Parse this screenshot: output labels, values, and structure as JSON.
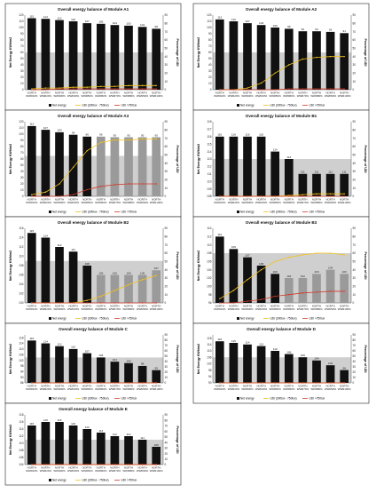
{
  "colors": {
    "bar": "#111111",
    "bar_alt": "#9a9a9a",
    "band": "#cfcfcf",
    "udi_mid": "#f2c21b",
    "udi_high": "#d23a2a"
  },
  "chart_data": [
    {
      "type": "bar",
      "title": "Overall energy balance of Module A1",
      "ylabel": "Net Energy KWh/m2",
      "y2label": "Percentage of UDI",
      "categories": [
        "NORTH WWR10%",
        "NORTH WWR20%",
        "NORTH WWR30%",
        "NORTH WWR40%",
        "NORTH WWR50%",
        "NORTH WWR60%",
        "NORTH WWR70%",
        "NORTH WWR80%",
        "NORTH WWR90%",
        "NORTH WWR100%"
      ],
      "values": [
        115,
        114,
        112,
        110,
        107,
        106,
        104,
        103,
        101,
        98
      ],
      "ylim": [
        0,
        120
      ],
      "yticks": [
        0,
        10,
        20,
        30,
        40,
        50,
        60,
        70,
        80,
        90,
        100,
        110,
        120
      ],
      "y2lim": [
        0,
        90
      ],
      "y2ticks": [
        0,
        10,
        20,
        30,
        40,
        50,
        60,
        70,
        80,
        90
      ],
      "band": [
        0,
        60
      ],
      "series": [
        {
          "name": "UDI (300lux - 750lux)",
          "values": [
            1,
            2,
            2,
            3,
            3,
            4,
            4,
            5,
            5,
            5
          ]
        },
        {
          "name": "UDI >750lux",
          "values": [
            0,
            0,
            1,
            1,
            1,
            1,
            1,
            1,
            1,
            1
          ]
        }
      ],
      "legend": [
        "Net energy",
        "UDI (300lux - 750lux)",
        "UDI >750lux"
      ],
      "legend_position": "bottom",
      "grid": false
    },
    {
      "type": "bar",
      "title": "Overall energy balance of Module A2",
      "ylabel": "Net Energy KWh/m2",
      "y2label": "Percentage of UDI",
      "categories": [
        "NORTH WWR10%",
        "NORTH WWR20%",
        "NORTH WWR30%",
        "NORTH WWR40%",
        "NORTH WWR50%",
        "NORTH WWR60%",
        "NORTH WWR70%",
        "NORTH WWR80%",
        "NORTH WWR90%",
        "NORTH WWR100%"
      ],
      "values": [
        113,
        110,
        107,
        104,
        100,
        98,
        94,
        94,
        93,
        91
      ],
      "ylim": [
        0,
        120
      ],
      "yticks": [
        0,
        10,
        20,
        30,
        40,
        50,
        60,
        70,
        80,
        90,
        100,
        110,
        120
      ],
      "y2lim": [
        0,
        90
      ],
      "y2ticks": [
        0,
        10,
        20,
        30,
        40,
        50,
        60,
        70,
        80,
        90
      ],
      "band": [
        0,
        60
      ],
      "series": [
        {
          "name": "UDI (300lux - 750lux)",
          "values": [
            0,
            0,
            2,
            8,
            20,
            30,
            37,
            39,
            40,
            40
          ]
        },
        {
          "name": "UDI >750lux",
          "values": [
            0,
            0,
            0,
            0,
            0,
            1,
            1,
            1,
            1,
            1
          ]
        }
      ],
      "legend": [
        "Net energy",
        "UDI (300lux - 750lux)",
        "UDI >750lux"
      ],
      "legend_position": "bottom",
      "grid": false
    },
    {
      "type": "bar",
      "title": "Overall energy balance of Module A3",
      "ylabel": "Net Energy KWh/m2",
      "y2label": "Percentage of UDI",
      "categories": [
        "NORTH WWR10%",
        "NORTH WWR20%",
        "NORTH WWR30%",
        "NORTH WWR40%",
        "NORTH WWR50%",
        "NORTH WWR60%",
        "NORTH WWR70%",
        "NORTH WWR80%",
        "NORTH WWR90%",
        "NORTH WWR100%"
      ],
      "values": [
        113,
        107,
        103,
        99,
        96,
        96,
        95,
        95,
        95,
        95
      ],
      "ylim": [
        0,
        120
      ],
      "yticks": [
        0,
        10,
        20,
        30,
        40,
        50,
        60,
        70,
        80,
        90,
        100,
        110,
        120
      ],
      "y2lim": [
        0,
        90
      ],
      "y2ticks": [
        0,
        10,
        20,
        30,
        40,
        50,
        60,
        70,
        80,
        90
      ],
      "band": [
        0,
        65
      ],
      "light_from": 5,
      "series": [
        {
          "name": "UDI (300lux - 750lux)",
          "values": [
            2,
            5,
            15,
            35,
            55,
            65,
            68,
            68,
            69,
            69
          ]
        },
        {
          "name": "UDI >750lux",
          "values": [
            0,
            0,
            0,
            2,
            8,
            12,
            14,
            15,
            15,
            15
          ]
        }
      ],
      "legend": [
        "Net energy",
        "UDI (300lux - 750lux)",
        "UDI >750lux"
      ],
      "legend_position": "bottom",
      "grid": false
    },
    {
      "type": "bar",
      "title": "Overall energy balance of Module B1",
      "ylabel": "Net Energy KWh/m2",
      "y2label": "Percentage of UDI",
      "categories": [
        "NORTH WWR10%",
        "NORTH WWR20%",
        "NORTH WWR30%",
        "NORTH WWR40%",
        "NORTH WWR50%",
        "NORTH WWR60%",
        "NORTH WWR70%",
        "NORTH WWR80%",
        "NORTH WWR90%",
        "NORTH WWR100%"
      ],
      "values": [
        116,
        116,
        116,
        116,
        114,
        113,
        111,
        111,
        111,
        111
      ],
      "ylim": [
        108,
        118
      ],
      "yticks": [
        108,
        109,
        110,
        111,
        112,
        113,
        114,
        115,
        116,
        117,
        118
      ],
      "y2lim": [
        0,
        90
      ],
      "y2ticks": [
        0,
        10,
        20,
        30,
        40,
        50,
        60,
        70,
        80,
        90
      ],
      "band": [
        108,
        113
      ],
      "series": [
        {
          "name": "UDI (300lux - 750lux)",
          "values": [
            0,
            0,
            0,
            0,
            0,
            1,
            2,
            3,
            3,
            3
          ]
        },
        {
          "name": "UDI >750lux",
          "values": [
            0,
            0,
            0,
            0,
            0,
            0,
            0,
            0,
            0,
            0
          ]
        }
      ],
      "legend": [
        "Net energy",
        "UDI (300lux - 750lux)",
        "UDI >750lux"
      ],
      "legend_position": "bottom",
      "grid": false
    },
    {
      "type": "bar",
      "title": "Overall energy balance of Module B2",
      "ylabel": "Net Energy KWh/m2",
      "y2label": "Percentage of UDI",
      "categories": [
        "NORTH WWR10%",
        "NORTH WWR20%",
        "NORTH WWR30%",
        "NORTH WWR40%",
        "NORTH WWR50%",
        "NORTH WWR60%",
        "NORTH WWR70%",
        "NORTH WWR80%",
        "NORTH WWR90%",
        "NORTH WWR100%"
      ],
      "values": [
        115,
        114,
        112,
        111,
        108,
        106,
        106,
        106,
        106,
        107
      ],
      "ylim": [
        100,
        116
      ],
      "yticks": [
        100,
        102,
        104,
        106,
        108,
        110,
        112,
        114,
        116
      ],
      "y2lim": [
        0,
        90
      ],
      "y2ticks": [
        0,
        10,
        20,
        30,
        40,
        50,
        60,
        70,
        80,
        90
      ],
      "band": [
        100,
        109
      ],
      "light_from": 5,
      "series": [
        {
          "name": "UDI (300lux - 750lux)",
          "values": [
            0,
            0,
            0,
            0,
            3,
            8,
            15,
            22,
            28,
            33
          ]
        },
        {
          "name": "UDI >750lux",
          "values": [
            0,
            0,
            0,
            0,
            0,
            0,
            0,
            0,
            0,
            0
          ]
        }
      ],
      "legend": [
        "Net energy",
        "UDI (300lux - 750lux)",
        "UDI >750lux"
      ],
      "legend_position": "bottom",
      "grid": false
    },
    {
      "type": "bar",
      "title": "Overall energy balance of Module B3",
      "ylabel": "Net Energy KWh/m2",
      "y2label": "Percentage of UDI",
      "categories": [
        "NORTH WWR10%",
        "NORTH WWR20%",
        "NORTH WWR30%",
        "NORTH WWR40%",
        "NORTH WWR50%",
        "NORTH WWR60%",
        "NORTH WWR70%",
        "NORTH WWR80%",
        "NORTH WWR90%",
        "NORTH WWR100%"
      ],
      "values": [
        112,
        109,
        107,
        105,
        103,
        102,
        102,
        103,
        104,
        103
      ],
      "ylim": [
        96,
        114
      ],
      "yticks": [
        96,
        98,
        100,
        102,
        104,
        106,
        108,
        110,
        112,
        114
      ],
      "y2lim": [
        0,
        90
      ],
      "y2ticks": [
        0,
        10,
        20,
        30,
        40,
        50,
        60,
        70,
        80,
        90
      ],
      "band": [
        96,
        108
      ],
      "light_from": 5,
      "series": [
        {
          "name": "UDI (300lux - 750lux)",
          "values": [
            5,
            15,
            28,
            40,
            50,
            55,
            58,
            60,
            60,
            58
          ]
        },
        {
          "name": "UDI >750lux",
          "values": [
            0,
            0,
            2,
            4,
            8,
            10,
            12,
            13,
            14,
            14
          ]
        }
      ],
      "legend": [
        "Net energy",
        "UDI (300lux - 750lux)",
        "UDI >750lux"
      ],
      "legend_position": "bottom",
      "grid": false
    },
    {
      "type": "bar",
      "title": "Overall energy balance of Module C",
      "ylabel": "Net Energy KWh/m2",
      "y2label": "Percentage of UDI",
      "categories": [
        "NORTH WWR10%",
        "NORTH WWR20%",
        "NORTH WWR30%",
        "NORTH WWR40%",
        "NORTH WWR50%",
        "NORTH WWR60%",
        "NORTH WWR70%",
        "NORTH WWR80%",
        "NORTH WWR90%",
        "NORTH WWR100%"
      ],
      "values": [
        116,
        114,
        112,
        110,
        107,
        104,
        101,
        100,
        98,
        95
      ],
      "ylim": [
        86,
        120
      ],
      "yticks": [
        86,
        90,
        94,
        98,
        102,
        106,
        110,
        114,
        118
      ],
      "y2lim": [
        0,
        90
      ],
      "y2ticks": [
        0,
        10,
        20,
        30,
        40,
        50,
        60,
        70,
        80,
        90
      ],
      "band": [
        86,
        104
      ],
      "series": [
        {
          "name": "UDI (300lux - 750lux)",
          "values": [
            0,
            0,
            0,
            0,
            0,
            0,
            0,
            0,
            0,
            0
          ]
        },
        {
          "name": "UDI >750lux",
          "values": [
            0,
            0,
            0,
            0,
            0,
            0,
            0,
            0,
            0,
            0
          ]
        }
      ],
      "legend": [
        "Net energy",
        "UDI (300lux - 750lux)",
        "UDI >750lux"
      ],
      "legend_position": "bottom",
      "grid": false
    },
    {
      "type": "bar",
      "title": "Overall energy balance of Module D",
      "ylabel": "Net Energy KWh/m2",
      "y2label": "Percentage of UDI",
      "categories": [
        "NORTH WWR10%",
        "NORTH WWR20%",
        "NORTH WWR30%",
        "NORTH WWR40%",
        "NORTH WWR50%",
        "NORTH WWR60%",
        "NORTH WWR70%",
        "NORTH WWR80%",
        "NORTH WWR90%",
        "NORTH WWR100%"
      ],
      "values": [
        116,
        115,
        114,
        113,
        110,
        108,
        106,
        104,
        101,
        98
      ],
      "ylim": [
        90,
        120
      ],
      "yticks": [
        90,
        94,
        98,
        102,
        106,
        110,
        114,
        118
      ],
      "y2lim": [
        0,
        90
      ],
      "y2ticks": [
        0,
        10,
        20,
        30,
        40,
        50,
        60,
        70,
        80,
        90
      ],
      "band": [
        90,
        106
      ],
      "series": [
        {
          "name": "UDI (300lux - 750lux)",
          "values": [
            0,
            0,
            0,
            0,
            0,
            0,
            0,
            0,
            0,
            0
          ]
        },
        {
          "name": "UDI >750lux",
          "values": [
            0,
            0,
            0,
            0,
            0,
            0,
            0,
            0,
            0,
            0
          ]
        }
      ],
      "legend": [
        "Net energy",
        "UDI (300lux - 750lux)",
        "UDI >750lux"
      ],
      "legend_position": "bottom",
      "grid": false
    },
    {
      "type": "bar",
      "title": "Overall energy balance of Module E",
      "ylabel": "Net Energy KWh/m2",
      "y2label": "Percentage of UDI",
      "categories": [
        "NORTH WWR10%",
        "NORTH WWR20%",
        "NORTH WWR30%",
        "NORTH WWR40%",
        "NORTH WWR50%",
        "NORTH WWR60%",
        "NORTH WWR70%",
        "NORTH WWR80%",
        "NORTH WWR90%",
        "NORTH WWR100%"
      ],
      "values": [
        115,
        116,
        116,
        115,
        114,
        113,
        112,
        112,
        111,
        109
      ],
      "ylim": [
        104,
        118
      ],
      "yticks": [
        104,
        106,
        108,
        110,
        112,
        114,
        116,
        118
      ],
      "y2lim": [
        0,
        90
      ],
      "y2ticks": [
        0,
        10,
        20,
        30,
        40,
        50,
        60,
        70,
        80,
        90
      ],
      "band": [
        104,
        111
      ],
      "series": [
        {
          "name": "UDI (300lux - 750lux)",
          "values": [
            0,
            0,
            0,
            0,
            0,
            0,
            0,
            0,
            0,
            0
          ]
        },
        {
          "name": "UDI >750lux",
          "values": [
            0,
            0,
            0,
            0,
            0,
            0,
            0,
            0,
            0,
            0
          ]
        }
      ],
      "legend": [
        "Net energy",
        "UDI (300lux - 750lux)",
        "UDI >750lux"
      ],
      "legend_position": "bottom",
      "grid": false
    }
  ]
}
